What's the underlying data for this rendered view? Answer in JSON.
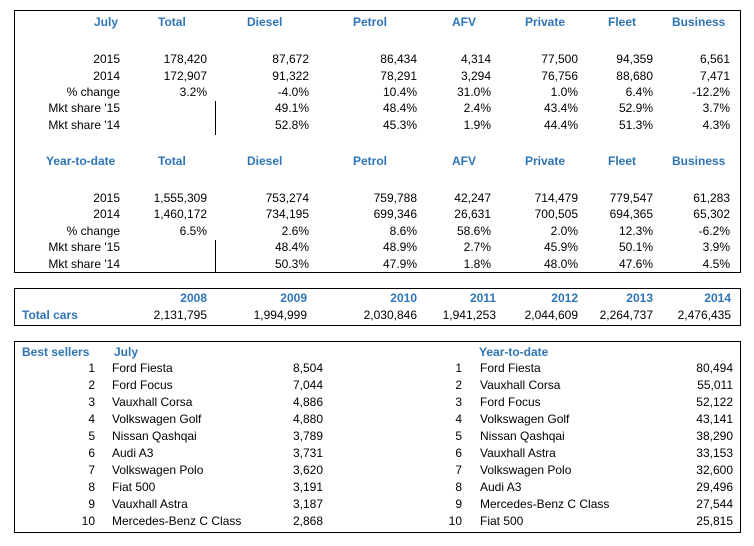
{
  "july": {
    "headers": [
      "July",
      "Total",
      "Diesel",
      "Petrol",
      "AFV",
      "Private",
      "Fleet",
      "Business"
    ],
    "rows": [
      {
        "label": "2015",
        "values": [
          "178,420",
          "87,672",
          "86,434",
          "4,314",
          "77,500",
          "94,359",
          "6,561"
        ]
      },
      {
        "label": "2014",
        "values": [
          "172,907",
          "91,322",
          "78,291",
          "3,294",
          "76,756",
          "88,680",
          "7,471"
        ]
      },
      {
        "label": "% change",
        "values": [
          "3.2%",
          "-4.0%",
          "10.4%",
          "31.0%",
          "1.0%",
          "6.4%",
          "-12.2%"
        ]
      },
      {
        "label": "Mkt share '15",
        "values": [
          "",
          "49.1%",
          "48.4%",
          "2.4%",
          "43.4%",
          "52.9%",
          "3.7%"
        ]
      },
      {
        "label": "Mkt share '14",
        "values": [
          "",
          "52.8%",
          "45.3%",
          "1.9%",
          "44.4%",
          "51.3%",
          "4.3%"
        ]
      }
    ]
  },
  "ytd": {
    "headers": [
      "Year-to-date",
      "Total",
      "Diesel",
      "Petrol",
      "AFV",
      "Private",
      "Fleet",
      "Business"
    ],
    "rows": [
      {
        "label": "2015",
        "values": [
          "1,555,309",
          "753,274",
          "759,788",
          "42,247",
          "714,479",
          "779,547",
          "61,283"
        ]
      },
      {
        "label": "2014",
        "values": [
          "1,460,172",
          "734,195",
          "699,346",
          "26,631",
          "700,505",
          "694,365",
          "65,302"
        ]
      },
      {
        "label": "% change",
        "values": [
          "6.5%",
          "2.6%",
          "8.6%",
          "58.6%",
          "2.0%",
          "12.3%",
          "-6.2%"
        ]
      },
      {
        "label": "Mkt share '15",
        "values": [
          "",
          "48.4%",
          "48.9%",
          "2.7%",
          "45.9%",
          "50.1%",
          "3.9%"
        ]
      },
      {
        "label": "Mkt share '14",
        "values": [
          "",
          "50.3%",
          "47.9%",
          "1.8%",
          "48.0%",
          "47.6%",
          "4.5%"
        ]
      }
    ]
  },
  "total_cars": {
    "label": "Total cars",
    "years": [
      "2008",
      "2009",
      "2010",
      "2011",
      "2012",
      "2013",
      "2014"
    ],
    "values": [
      "2,131,795",
      "1,994,999",
      "2,030,846",
      "1,941,253",
      "2,044,609",
      "2,264,737",
      "2,476,435"
    ]
  },
  "best_sellers": {
    "title": "Best sellers",
    "july_title": "July",
    "ytd_title": "Year-to-date",
    "july": [
      {
        "rank": "1",
        "model": "Ford Fiesta",
        "units": "8,504"
      },
      {
        "rank": "2",
        "model": "Ford Focus",
        "units": "7,044"
      },
      {
        "rank": "3",
        "model": "Vauxhall Corsa",
        "units": "4,886"
      },
      {
        "rank": "4",
        "model": "Volkswagen Golf",
        "units": "4,880"
      },
      {
        "rank": "5",
        "model": "Nissan Qashqai",
        "units": "3,789"
      },
      {
        "rank": "6",
        "model": "Audi A3",
        "units": "3,731"
      },
      {
        "rank": "7",
        "model": "Volkswagen Polo",
        "units": "3,620"
      },
      {
        "rank": "8",
        "model": "Fiat 500",
        "units": "3,191"
      },
      {
        "rank": "9",
        "model": "Vauxhall Astra",
        "units": "3,187"
      },
      {
        "rank": "10",
        "model": "Mercedes-Benz C Class",
        "units": "2,868"
      }
    ],
    "ytd": [
      {
        "rank": "1",
        "model": "Ford Fiesta",
        "units": "80,494"
      },
      {
        "rank": "2",
        "model": "Vauxhall Corsa",
        "units": "55,011"
      },
      {
        "rank": "3",
        "model": "Ford Focus",
        "units": "52,122"
      },
      {
        "rank": "4",
        "model": "Volkswagen Golf",
        "units": "43,141"
      },
      {
        "rank": "5",
        "model": "Nissan Qashqai",
        "units": "38,290"
      },
      {
        "rank": "6",
        "model": "Vauxhall Astra",
        "units": "33,153"
      },
      {
        "rank": "7",
        "model": "Volkswagen Polo",
        "units": "32,600"
      },
      {
        "rank": "8",
        "model": "Audi A3",
        "units": "29,496"
      },
      {
        "rank": "9",
        "model": "Mercedes-Benz C Class",
        "units": "27,544"
      },
      {
        "rank": "10",
        "model": "Fiat 500",
        "units": "25,815"
      }
    ]
  }
}
